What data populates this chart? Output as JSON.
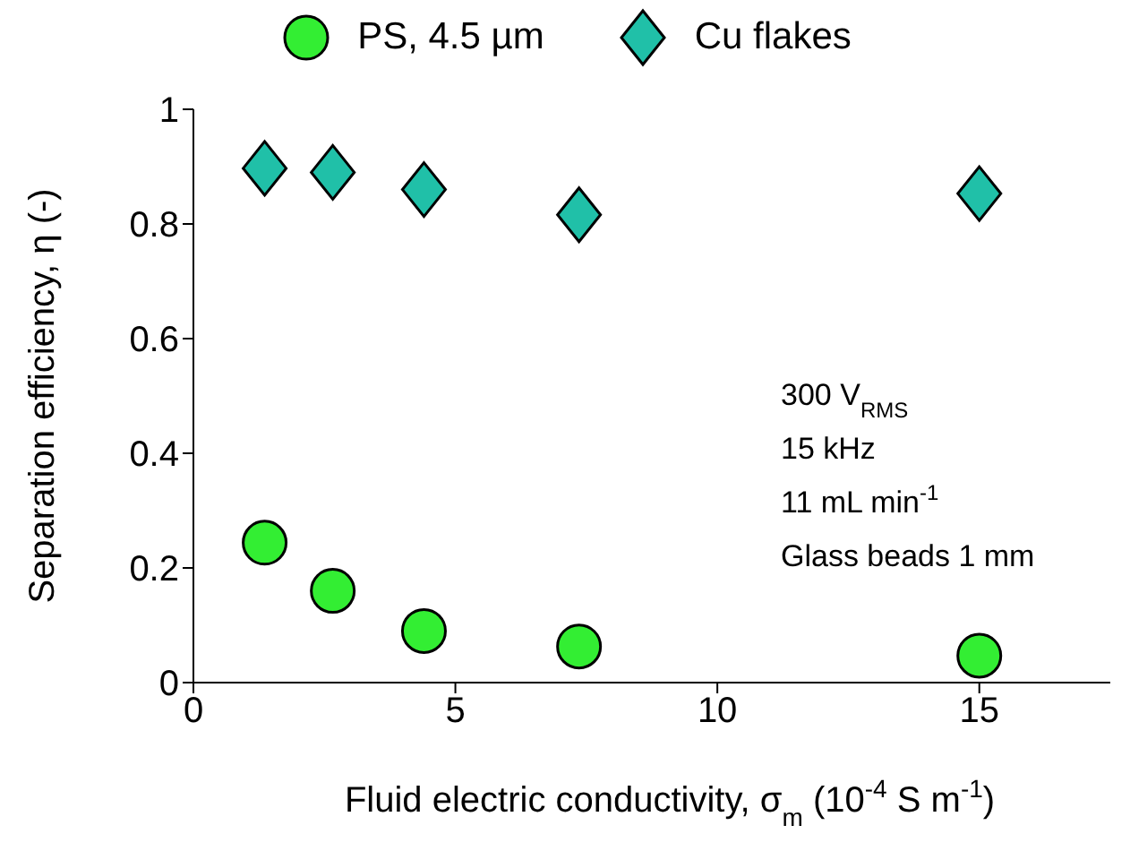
{
  "chart_data": {
    "type": "scatter",
    "xlabel": "Fluid electric conductivity, σ$_{m}$ (10$^{-4}$ S m$^{-1}$)",
    "ylabel": "Separation efficiency, η (-)",
    "xlim": [
      0,
      17.5
    ],
    "xticks": [
      0,
      5,
      10,
      15
    ],
    "ylim": [
      0,
      1
    ],
    "yticks": [
      0,
      0.2,
      0.4,
      0.6,
      0.8,
      1
    ],
    "grid": false,
    "legend": "top",
    "annotations": [
      "300 V$_{RMS}$",
      "15 kHz",
      "11 mL min$^{-1}$",
      "Glass beads 1 mm"
    ],
    "series": [
      {
        "name": "PS, 4.5 µm",
        "color": "#33ee33",
        "marker": "circle",
        "x": [
          1.36,
          2.66,
          4.4,
          7.36,
          15
        ],
        "values": [
          0.244,
          0.16,
          0.09,
          0.063,
          0.047
        ]
      },
      {
        "name": "Cu flakes",
        "color": "#20c0a8",
        "marker": "diamond",
        "x": [
          1.36,
          2.66,
          4.4,
          7.36,
          15
        ],
        "values": [
          0.897,
          0.89,
          0.86,
          0.816,
          0.853
        ]
      }
    ]
  }
}
